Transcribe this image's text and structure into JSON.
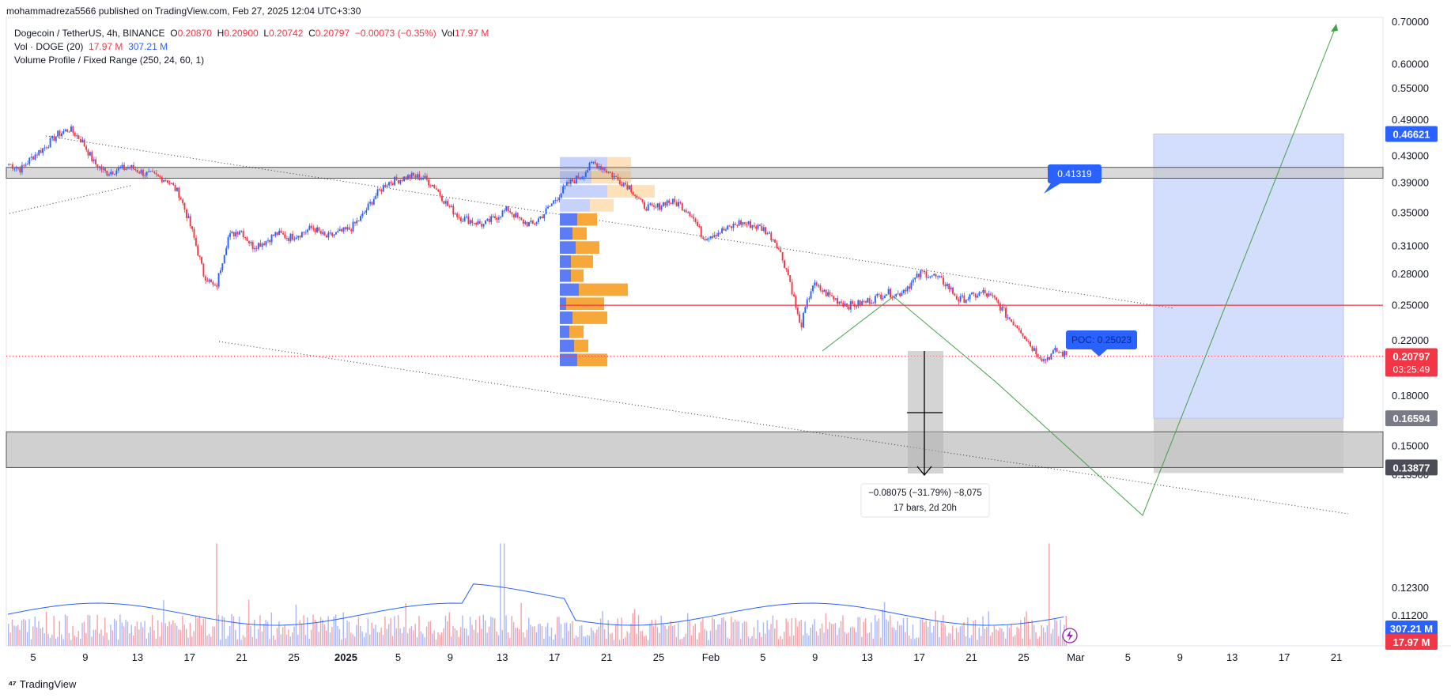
{
  "publisher": "mohammadreza5566 published on TradingView.com, Feb 27, 2025 12:04 UTC+3:30",
  "legend": {
    "symbol": "Dogecoin / TetherUS, 4h, BINANCE",
    "o_label": "O",
    "o": "0.20870",
    "h_label": "H",
    "h": "0.20900",
    "l_label": "L",
    "l": "0.20742",
    "c_label": "C",
    "c": "0.20797",
    "change": "−0.00073 (−0.35%)",
    "vol_label": "Vol",
    "vol": "17.97 M",
    "vol_indicator": "Vol · DOGE (20)",
    "vol_val1": "17.97 M",
    "vol_val2": "307.21 M",
    "vp_indicator": "Volume Profile / Fixed Range (250, 24, 60, 1)"
  },
  "brand": "TradingView",
  "colors": {
    "up": "#2962ff",
    "down": "#f23645",
    "vp_up": "#5b7cf5",
    "vp_down": "#f7a83b",
    "poc": "#f23645",
    "target_zone": "#c8d6fb",
    "zone": "#c4c4c4",
    "channel": "#333333",
    "path": "#43a047"
  },
  "chart_data": {
    "type": "candlestick",
    "symbol": "Dogecoin / TetherUS",
    "timeframe": "4h",
    "exchange": "BINANCE",
    "price_axis_ticks": [
      "0.70000",
      "0.60000",
      "0.55000",
      "0.49000",
      "0.43000",
      "0.39000",
      "0.35000",
      "0.31000",
      "0.28000",
      "0.25000",
      "0.22000",
      "0.18000",
      "0.15000",
      "0.13500",
      "0.12300",
      "0.11200"
    ],
    "time_axis_ticks": [
      "5",
      "9",
      "13",
      "17",
      "21",
      "25",
      "2025",
      "5",
      "9",
      "13",
      "17",
      "21",
      "25",
      "Feb",
      "5",
      "9",
      "13",
      "17",
      "21",
      "25",
      "Mar",
      "5",
      "9",
      "13",
      "17",
      "21"
    ],
    "price_axis_labels": [
      {
        "value": "0.46621",
        "color": "#2962ff"
      },
      {
        "value": "0.20797",
        "color": "#f23645",
        "sub": "03:25:49"
      },
      {
        "value": "0.16594",
        "color": "#787b86"
      },
      {
        "value": "0.13877",
        "color": "#4a4d57"
      },
      {
        "value": "307.21 M",
        "color": "#2962ff"
      },
      {
        "value": "17.97 M",
        "color": "#f23645"
      }
    ],
    "price_path_close": [
      0.418,
      0.41,
      0.43,
      0.445,
      0.465,
      0.475,
      0.455,
      0.42,
      0.405,
      0.41,
      0.413,
      0.405,
      0.4,
      0.395,
      0.375,
      0.33,
      0.28,
      0.265,
      0.32,
      0.33,
      0.31,
      0.315,
      0.325,
      0.32,
      0.325,
      0.332,
      0.32,
      0.325,
      0.33,
      0.345,
      0.37,
      0.39,
      0.395,
      0.4,
      0.398,
      0.385,
      0.36,
      0.345,
      0.34,
      0.335,
      0.345,
      0.355,
      0.34,
      0.335,
      0.35,
      0.37,
      0.39,
      0.4,
      0.42,
      0.41,
      0.395,
      0.385,
      0.36,
      0.355,
      0.365,
      0.362,
      0.35,
      0.32,
      0.325,
      0.33,
      0.338,
      0.335,
      0.33,
      0.315,
      0.28,
      0.23,
      0.27,
      0.262,
      0.255,
      0.25,
      0.252,
      0.256,
      0.262,
      0.26,
      0.27,
      0.282,
      0.278,
      0.27,
      0.255,
      0.258,
      0.262,
      0.255,
      0.24,
      0.23,
      0.215,
      0.205,
      0.212,
      0.208
    ],
    "annotations": {
      "price_label_top": "0.41319",
      "poc_label": "POC: 0.25023",
      "poc_price": 0.25023,
      "last_price": 0.20797,
      "resistance_zone": [
        0.397,
        0.413
      ],
      "support_zone": [
        0.13877,
        0.158
      ],
      "target_box": [
        0.16594,
        0.46621
      ],
      "measure_text_1": "−0.08075 (−31.79%) −8,075",
      "measure_text_2": "17 bars, 2d 20h"
    },
    "volume_profile": {
      "rows_up": [
        60,
        40,
        60,
        38,
        22,
        16,
        20,
        14,
        14,
        24,
        8,
        16,
        12,
        18,
        22
      ],
      "rows_down": [
        30,
        50,
        60,
        30,
        25,
        18,
        30,
        28,
        16,
        62,
        48,
        44,
        18,
        18,
        38
      ],
      "poc_row": 3
    }
  }
}
